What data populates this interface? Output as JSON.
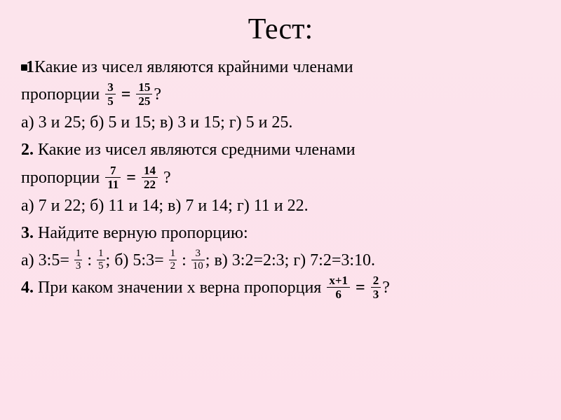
{
  "title": "Тест:",
  "q1": {
    "num_prefix": "1",
    "text_a": "Какие из чисел являются крайними членами",
    "text_b": "пропорции",
    "frac_left": {
      "num": "3",
      "den": "5"
    },
    "frac_right": {
      "num": "15",
      "den": "25"
    },
    "qmark": "?",
    "answers": {
      "a_label": "а)",
      "a_text": " 3 и 25; ",
      "b_label": "б)",
      "b_text": " 5 и 15; ",
      "v_label": "в)",
      "v_text": " 3 и 15; ",
      "g_label": "г)",
      "g_text": " 5 и 25."
    }
  },
  "q2": {
    "num_prefix": "2.",
    "text_a": " Какие из чисел являются средними членами",
    "text_b": "пропорции",
    "frac_left": {
      "num": "7",
      "den": "11"
    },
    "frac_right": {
      "num": "14",
      "den": "22"
    },
    "qmark": " ?",
    "answers": {
      "a_label": "а)",
      "a_text": " 7 и 22; ",
      "b_label": "б)",
      "b_text": " 11 и 14; ",
      "v_label": "в)",
      "v_text": " 7 и 14; ",
      "g_label": "г)",
      "g_text": " 11 и 22."
    }
  },
  "q3": {
    "num_prefix": "3.",
    "text_a": " Найдите верную пропорцию:",
    "answers": {
      "a_label": "а)",
      "a_text_pre": " 3:5= ",
      "a_f1": {
        "num": "1",
        "den": "3"
      },
      "a_colon": " : ",
      "a_f2": {
        "num": "1",
        "den": "5"
      },
      "a_post": "; ",
      "b_label": "б)",
      "b_text_pre": " 5:3= ",
      "b_f1": {
        "num": "1",
        "den": "2"
      },
      "b_colon": " : ",
      "b_f2": {
        "num": "3",
        "den": "10"
      },
      "b_post": "; ",
      "v_label": "в)",
      "v_text": " 3:2=2:3; ",
      "g_label": "г)",
      "g_text": " 7:2=3:10."
    }
  },
  "q4": {
    "num_prefix": "4.",
    "text_a": " При каком значении х верна пропорция ",
    "frac_left": {
      "num": "х+1",
      "den": "6"
    },
    "frac_right": {
      "num": "2",
      "den": "3"
    },
    "qmark": "?"
  },
  "colors": {
    "bg_top": "#fce4ec",
    "bg_bottom": "#fde1eb",
    "text": "#000000"
  }
}
